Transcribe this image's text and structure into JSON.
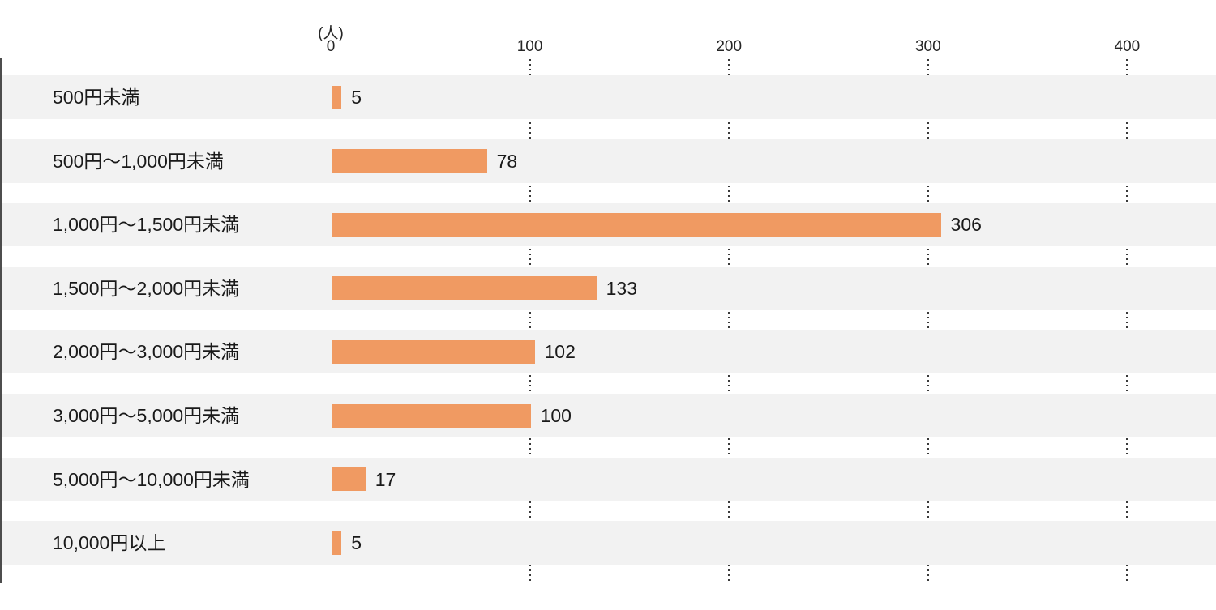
{
  "chart_data": {
    "type": "bar",
    "orientation": "horizontal",
    "unit_label": "(人)",
    "categories": [
      "500円未満",
      "500円〜1,000円未満",
      "1,000円〜1,500円未満",
      "1,500円〜2,000円未満",
      "2,000円〜3,000円未満",
      "3,000円〜5,000円未満",
      "5,000円〜10,000円未満",
      "10,000円以上"
    ],
    "values": [
      5,
      78,
      306,
      133,
      102,
      100,
      17,
      5
    ],
    "value_labels": [
      "5",
      "78",
      "306",
      "133",
      "102",
      "100",
      "17",
      "5"
    ],
    "x_ticks": [
      0,
      100,
      200,
      300,
      400
    ],
    "x_tick_labels": [
      "0",
      "100",
      "200",
      "300",
      "400"
    ],
    "xlim": [
      0,
      400
    ],
    "legend": "none",
    "grid": "dotted-vertical-in-row-gaps",
    "colors": {
      "bar": "#f09a62",
      "row_band": "#f2f2f2",
      "axis_line": "#4d4d4d",
      "gridline_dots": "#3a3a3a",
      "text": "#1a1a1a",
      "background": "#ffffff"
    }
  }
}
